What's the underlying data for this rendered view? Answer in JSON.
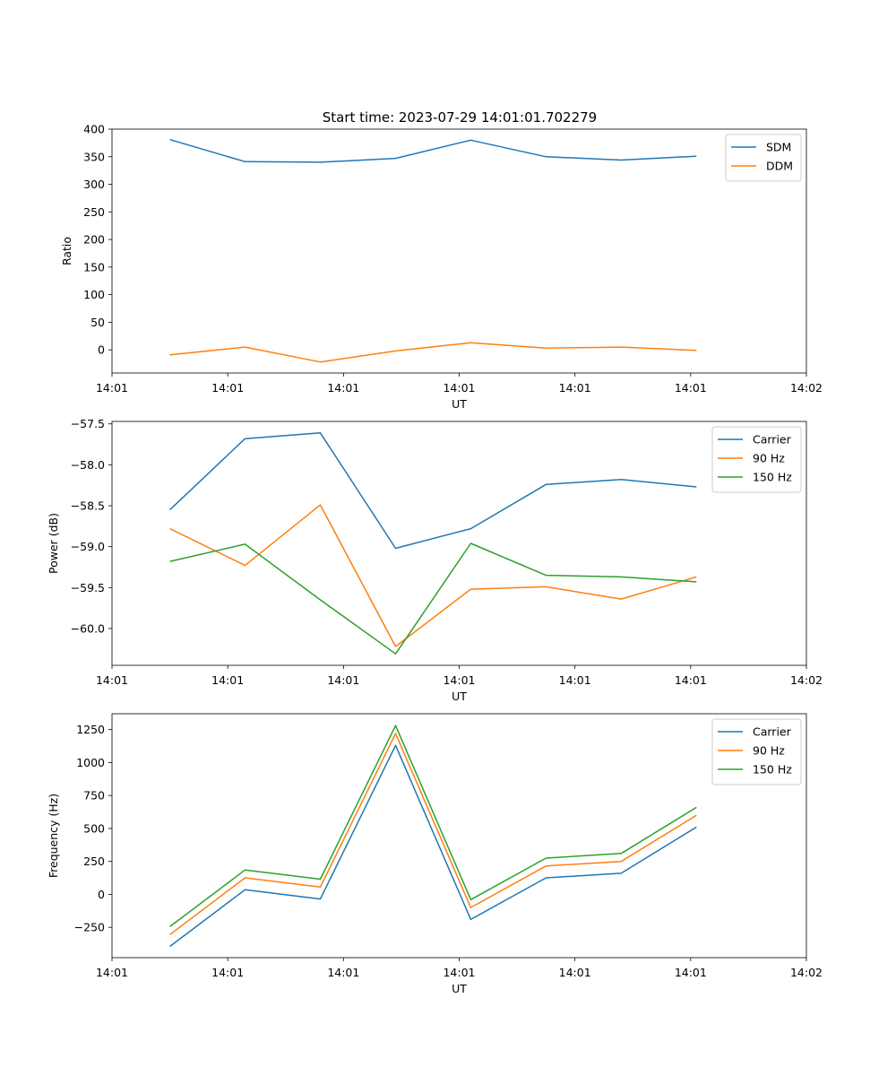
{
  "figure": {
    "suptitle": "Start time: 2023-07-29 14:01:01.702279"
  },
  "colors": {
    "c0": "#1f77b4",
    "c1": "#ff7f0e",
    "c2": "#2ca02c",
    "axis": "#000000",
    "legend_edge": "#cccccc"
  },
  "chart_data": [
    {
      "type": "line",
      "title": "Start time: 2023-07-29 14:01:01.702279",
      "xlabel": "UT",
      "ylabel": "Ratio",
      "xticks": [
        "14:01",
        "14:01",
        "14:01",
        "14:01",
        "14:01",
        "14:01",
        "14:02"
      ],
      "xlim": [
        0,
        6
      ],
      "x": [
        0.5,
        1.15,
        1.8,
        2.45,
        3.1,
        3.75,
        4.4,
        5.05
      ],
      "ylim": [
        -42,
        400
      ],
      "yticks": [
        0,
        50,
        100,
        150,
        200,
        250,
        300,
        350,
        400
      ],
      "legend": "upper right",
      "series": [
        {
          "name": "SDM",
          "color": "#1f77b4",
          "values": [
            381,
            341,
            340,
            347,
            380,
            350,
            344,
            351
          ]
        },
        {
          "name": "DDM",
          "color": "#ff7f0e",
          "values": [
            -9,
            5,
            -22,
            -2,
            13,
            3,
            5,
            -1
          ]
        }
      ]
    },
    {
      "type": "line",
      "xlabel": "UT",
      "ylabel": "Power (dB)",
      "xticks": [
        "14:01",
        "14:01",
        "14:01",
        "14:01",
        "14:01",
        "14:01",
        "14:02"
      ],
      "xlim": [
        0,
        6
      ],
      "x": [
        0.5,
        1.15,
        1.8,
        2.45,
        3.1,
        3.75,
        4.4,
        5.05
      ],
      "ylim": [
        -60.45,
        -57.47
      ],
      "yticks": [
        -60.0,
        -59.5,
        -59.0,
        -58.5,
        -58.0,
        -57.5
      ],
      "ytick_labels": [
        "−60.0",
        "−59.5",
        "−59.0",
        "−58.5",
        "−58.0",
        "−57.5"
      ],
      "legend": "upper right",
      "series": [
        {
          "name": "Carrier",
          "color": "#1f77b4",
          "values": [
            -58.55,
            -57.68,
            -57.61,
            -59.02,
            -58.78,
            -58.24,
            -58.18,
            -58.27
          ]
        },
        {
          "name": "90 Hz",
          "color": "#ff7f0e",
          "values": [
            -58.78,
            -59.23,
            -58.49,
            -60.22,
            -59.52,
            -59.49,
            -59.64,
            -59.37
          ]
        },
        {
          "name": "150 Hz",
          "color": "#2ca02c",
          "values": [
            -59.18,
            -58.97,
            -59.65,
            -60.31,
            -58.96,
            -59.35,
            -59.37,
            -59.43
          ]
        }
      ]
    },
    {
      "type": "line",
      "xlabel": "UT",
      "ylabel": "Frequency (Hz)",
      "xticks": [
        "14:01",
        "14:01",
        "14:01",
        "14:01",
        "14:01",
        "14:01",
        "14:02"
      ],
      "xlim": [
        0,
        6
      ],
      "x": [
        0.5,
        1.15,
        1.8,
        2.45,
        3.1,
        3.75,
        4.4,
        5.05
      ],
      "ylim": [
        -480,
        1370
      ],
      "yticks": [
        -250,
        0,
        250,
        500,
        750,
        1000,
        1250
      ],
      "ytick_labels": [
        "−250",
        "0",
        "250",
        "500",
        "750",
        "1000",
        "1250"
      ],
      "legend": "upper right",
      "series": [
        {
          "name": "Carrier",
          "color": "#1f77b4",
          "values": [
            -395,
            35,
            -35,
            1130,
            -190,
            125,
            160,
            510
          ]
        },
        {
          "name": "90 Hz",
          "color": "#ff7f0e",
          "values": [
            -305,
            125,
            55,
            1220,
            -100,
            215,
            250,
            600
          ]
        },
        {
          "name": "150 Hz",
          "color": "#2ca02c",
          "values": [
            -245,
            185,
            115,
            1280,
            -40,
            275,
            310,
            660
          ]
        }
      ]
    }
  ]
}
